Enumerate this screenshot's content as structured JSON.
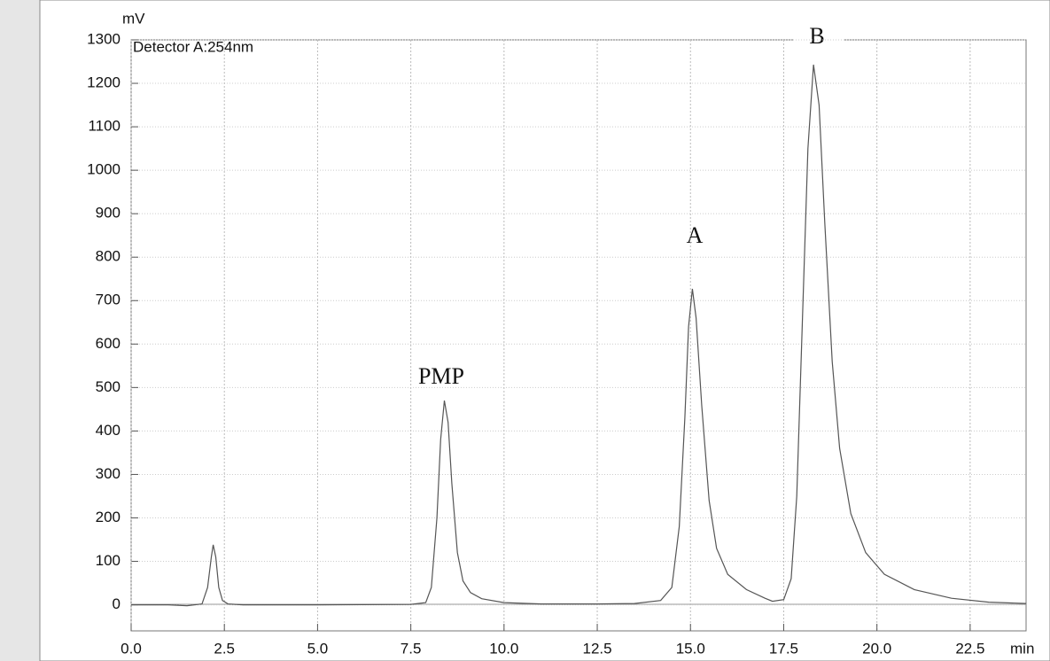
{
  "chart_data": {
    "type": "line",
    "y_unit": "mV",
    "x_unit": "min",
    "annotation": "Detector A:254nm",
    "peak_labels": [
      "PMP",
      "A",
      "B"
    ],
    "x": [
      0,
      1.0,
      1.5,
      1.9,
      2.05,
      2.15,
      2.2,
      2.27,
      2.35,
      2.45,
      2.6,
      3,
      5,
      7.5,
      7.9,
      8.05,
      8.2,
      8.3,
      8.4,
      8.5,
      8.6,
      8.75,
      8.9,
      9.1,
      9.4,
      10,
      11,
      12.5,
      13.5,
      14.2,
      14.5,
      14.7,
      14.85,
      14.95,
      15.05,
      15.15,
      15.3,
      15.5,
      15.7,
      16.0,
      16.5,
      17.0,
      17.2,
      17.5,
      17.7,
      17.85,
      18.0,
      18.15,
      18.3,
      18.45,
      18.6,
      18.8,
      19.0,
      19.3,
      19.7,
      20.2,
      21,
      22,
      23,
      24
    ],
    "series": [
      {
        "color": "#555555",
        "values": [
          0,
          0,
          -2,
          2,
          40,
          110,
          138,
          110,
          40,
          10,
          2,
          0,
          0,
          1,
          5,
          40,
          200,
          380,
          470,
          420,
          280,
          120,
          55,
          28,
          14,
          5,
          2,
          2,
          3,
          10,
          40,
          180,
          430,
          640,
          727,
          660,
          460,
          240,
          130,
          70,
          35,
          15,
          8,
          12,
          60,
          250,
          650,
          1050,
          1243,
          1150,
          880,
          560,
          360,
          210,
          120,
          70,
          35,
          15,
          6,
          3
        ]
      }
    ],
    "xlim": [
      0,
      24
    ],
    "ylim": [
      -60,
      1300
    ],
    "xticks": [
      {
        "value": 0,
        "label": "0.0"
      },
      {
        "value": 2.5,
        "label": "2.5"
      },
      {
        "value": 5,
        "label": "5.0"
      },
      {
        "value": 7.5,
        "label": "7.5"
      },
      {
        "value": 10,
        "label": "10.0"
      },
      {
        "value": 12.5,
        "label": "12.5"
      },
      {
        "value": 15,
        "label": "15.0"
      },
      {
        "value": 17.5,
        "label": "17.5"
      },
      {
        "value": 20,
        "label": "20.0"
      },
      {
        "value": 22.5,
        "label": "22.5"
      }
    ],
    "yticks": [
      0,
      100,
      200,
      300,
      400,
      500,
      600,
      700,
      800,
      900,
      1000,
      1100,
      1200,
      1300
    ],
    "grid": true
  }
}
